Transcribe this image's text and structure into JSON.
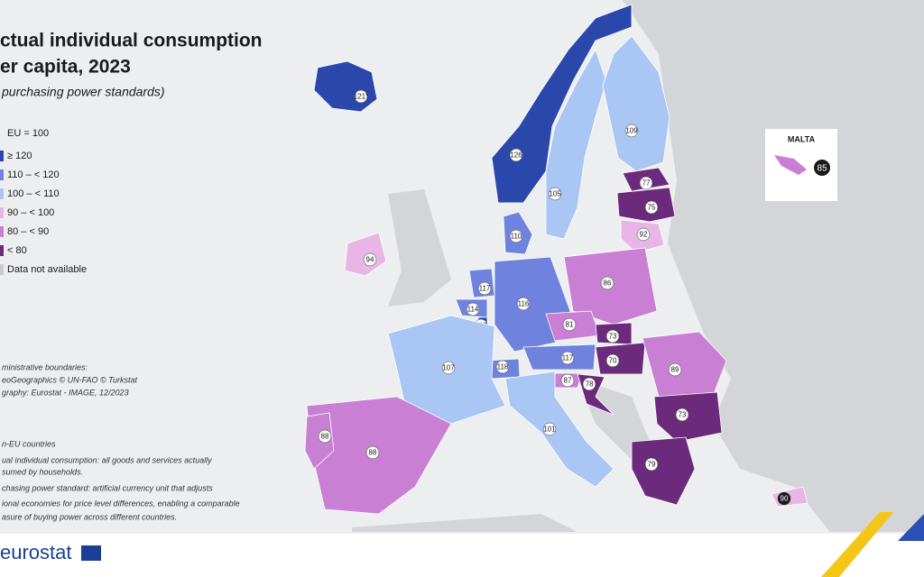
{
  "header": {
    "title_line1": "ctual individual consumption",
    "title_line2": "er capita, 2023",
    "subtitle": "purchasing power standards)"
  },
  "legend": {
    "caption": "EU = 100",
    "items": [
      {
        "label": "≥ 120",
        "color": "#2a47ac"
      },
      {
        "label": "110 – < 120",
        "color": "#6f82dd"
      },
      {
        "label": "100 – < 110",
        "color": "#a9c6f4"
      },
      {
        "label": "90 – < 100",
        "color": "#e8b6e6"
      },
      {
        "label": "80 – < 90",
        "color": "#c97fd3"
      },
      {
        "label": "< 80",
        "color": "#6c2a7c"
      },
      {
        "label": "Data not available",
        "color": "#c8cacd"
      }
    ]
  },
  "source": [
    "ministrative boundaries:",
    "eoGeographics  © UN-FAO © Turkstat",
    "graphy: Eurostat - IMAGE, 12/2023"
  ],
  "footnotes": [
    "n-EU countries",
    "ual individual consumption: all goods and services actually",
    "sumed by households.",
    "chasing power standard: artificial currency unit that adjusts",
    "ional economies for price level differences, enabling a comparable",
    "asure of buying power across different countries."
  ],
  "inset": {
    "title": "MALTA",
    "value": 85,
    "color": "#c97fd3"
  },
  "regions": [
    {
      "label": "121*",
      "color": "#2a47ac"
    },
    {
      "label": "126",
      "color": "#2a47ac"
    },
    {
      "label": "105",
      "color": "#a9c6f4"
    },
    {
      "label": "109",
      "color": "#a9c6f4"
    },
    {
      "label": "77",
      "color": "#6c2a7c"
    },
    {
      "label": "75",
      "color": "#6c2a7c"
    },
    {
      "label": "92",
      "color": "#e8b6e6"
    },
    {
      "label": "110",
      "color": "#6f82dd"
    },
    {
      "label": "94",
      "color": "#e8b6e6"
    },
    {
      "label": "117",
      "color": "#6f82dd"
    },
    {
      "label": "114",
      "color": "#6f82dd"
    },
    {
      "label": "138",
      "color": "#2a47ac"
    },
    {
      "label": "116",
      "color": "#6f82dd"
    },
    {
      "label": "86",
      "color": "#c97fd3"
    },
    {
      "label": "81",
      "color": "#c97fd3"
    },
    {
      "label": "73",
      "color": "#6c2a7c"
    },
    {
      "label": "70",
      "color": "#6c2a7c"
    },
    {
      "label": "117",
      "color": "#6f82dd"
    },
    {
      "label": "118",
      "color": "#6f82dd"
    },
    {
      "label": "87",
      "color": "#c97fd3"
    },
    {
      "label": "78",
      "color": "#6c2a7c"
    },
    {
      "label": "107",
      "color": "#a9c6f4"
    },
    {
      "label": "101",
      "color": "#a9c6f4"
    },
    {
      "label": "88",
      "color": "#c97fd3"
    },
    {
      "label": "88",
      "color": "#c97fd3"
    },
    {
      "label": "89",
      "color": "#c97fd3"
    },
    {
      "label": "73",
      "color": "#6c2a7c"
    },
    {
      "label": "79",
      "color": "#6c2a7c"
    },
    {
      "label": "90",
      "color": "#e8b6e6"
    }
  ],
  "logo": "eurostat"
}
